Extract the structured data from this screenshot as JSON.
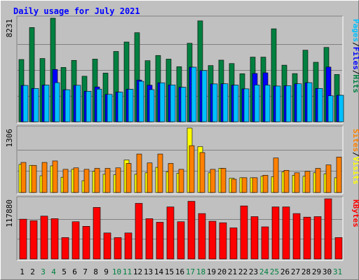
{
  "chart_data": {
    "type": "bar",
    "title": "Daily usage for July 2021",
    "days": [
      "1",
      "2",
      "3",
      "4",
      "5",
      "6",
      "7",
      "8",
      "9",
      "10",
      "11",
      "12",
      "13",
      "14",
      "15",
      "16",
      "17",
      "18",
      "19",
      "20",
      "21",
      "22",
      "23",
      "24",
      "25",
      "26",
      "27",
      "28",
      "29",
      "30",
      "31"
    ],
    "weekend_days": [
      "3",
      "4",
      "10",
      "11",
      "17",
      "18",
      "24",
      "25",
      "31"
    ],
    "panels": [
      {
        "id": "hits-files-pages",
        "max_label": "8231",
        "ymax": 8231,
        "legend": [
          "Pages",
          "/",
          "Files",
          "/",
          "Hits"
        ],
        "series": [
          {
            "name": "Hits",
            "color": "#008040",
            "values": [
              4950,
              7490,
              5030,
              8231,
              4320,
              4880,
              3620,
              4980,
              3870,
              5590,
              6340,
              7080,
              4860,
              5270,
              4980,
              4380,
              6240,
              8020,
              4470,
              4900,
              4630,
              3820,
              5140,
              5140,
              7390,
              4500,
              3830,
              5690,
              4730,
              5910,
              3760
            ]
          },
          {
            "name": "Files",
            "color": "#0000ff",
            "values": [
              2890,
              2650,
              2920,
              4160,
              2550,
              2900,
              2430,
              2770,
              2180,
              2360,
              2590,
              3320,
              2910,
              3100,
              2930,
              2750,
              4340,
              4070,
              3010,
              3020,
              2920,
              2620,
              3840,
              3890,
              2840,
              2870,
              3020,
              3110,
              2650,
              4350,
              2110
            ]
          },
          {
            "name": "Pages",
            "color": "#00c0ff",
            "values": [
              2890,
              2650,
              2920,
              3110,
              2550,
              2900,
              2430,
              2600,
              2180,
              2360,
              2590,
              3220,
              2560,
              3100,
              2930,
              2750,
              4340,
              4070,
              3010,
              3020,
              2920,
              2620,
              2930,
              2920,
              2840,
              2870,
              3020,
              3110,
              2650,
              2070,
              2110
            ]
          }
        ]
      },
      {
        "id": "visits-sites",
        "max_label": "1306",
        "ymax": 1306,
        "legend": [
          "Sites",
          "/",
          "Visits"
        ],
        "series": [
          {
            "name": "Visits",
            "color": "#ffff00",
            "values": [
              570,
              550,
              340,
              540,
              310,
              470,
              240,
              430,
              370,
              360,
              660,
              370,
              400,
              510,
              420,
              390,
              1306,
              930,
              400,
              490,
              290,
              300,
              300,
              330,
              320,
              420,
              350,
              330,
              400,
              380,
              300
            ]
          },
          {
            "name": "Sites",
            "color": "#ff8000",
            "values": [
              610,
              550,
              610,
              640,
              470,
              500,
              470,
              490,
              490,
              500,
              590,
              780,
              600,
              780,
              590,
              470,
              950,
              810,
              470,
              490,
              270,
              300,
              300,
              350,
              700,
              450,
              400,
              430,
              490,
              560,
              720
            ]
          }
        ]
      },
      {
        "id": "kbytes",
        "max_label": "117880",
        "ymax": 117880,
        "legend": [
          "KBytes"
        ],
        "series": [
          {
            "name": "KBytes",
            "color": "#ff0000",
            "values": [
              78000,
              75000,
              84000,
              79000,
              42000,
              73000,
              64000,
              101000,
              51000,
              42000,
              51000,
              109000,
              79000,
              72000,
              102000,
              73000,
              113000,
              89000,
              74000,
              71000,
              61000,
              104000,
              83000,
              63000,
              102000,
              102000,
              89000,
              82000,
              83000,
              117880,
              42000
            ]
          }
        ]
      }
    ]
  },
  "colors": {
    "title": "#0000ff",
    "frame_bg": "#c0c0c0",
    "panel_bg": "#c0c0c0",
    "gridline": "#808080",
    "weekday_label": "#000000",
    "weekend_label": "#008040"
  }
}
